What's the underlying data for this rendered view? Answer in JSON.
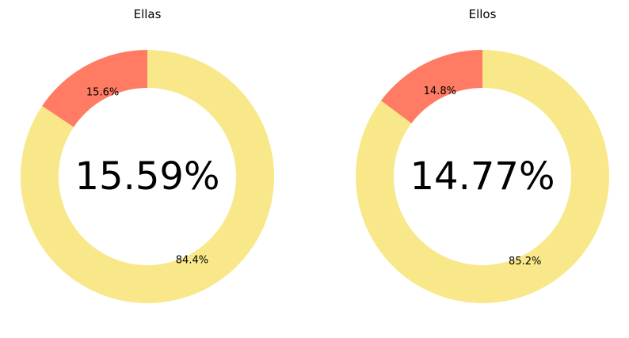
{
  "chart_data": [
    {
      "type": "pie",
      "title": "Ellas",
      "center_label": "15.59%",
      "slices": [
        {
          "value": 15.59,
          "label": "15.6%",
          "color": "#ff7b63"
        },
        {
          "value": 84.41,
          "label": "84.4%",
          "color": "#f8e88a"
        }
      ]
    },
    {
      "type": "pie",
      "title": "Ellos",
      "center_label": "14.77%",
      "slices": [
        {
          "value": 14.77,
          "label": "14.8%",
          "color": "#ff7b63"
        },
        {
          "value": 85.23,
          "label": "85.2%",
          "color": "#f8e88a"
        }
      ]
    }
  ]
}
